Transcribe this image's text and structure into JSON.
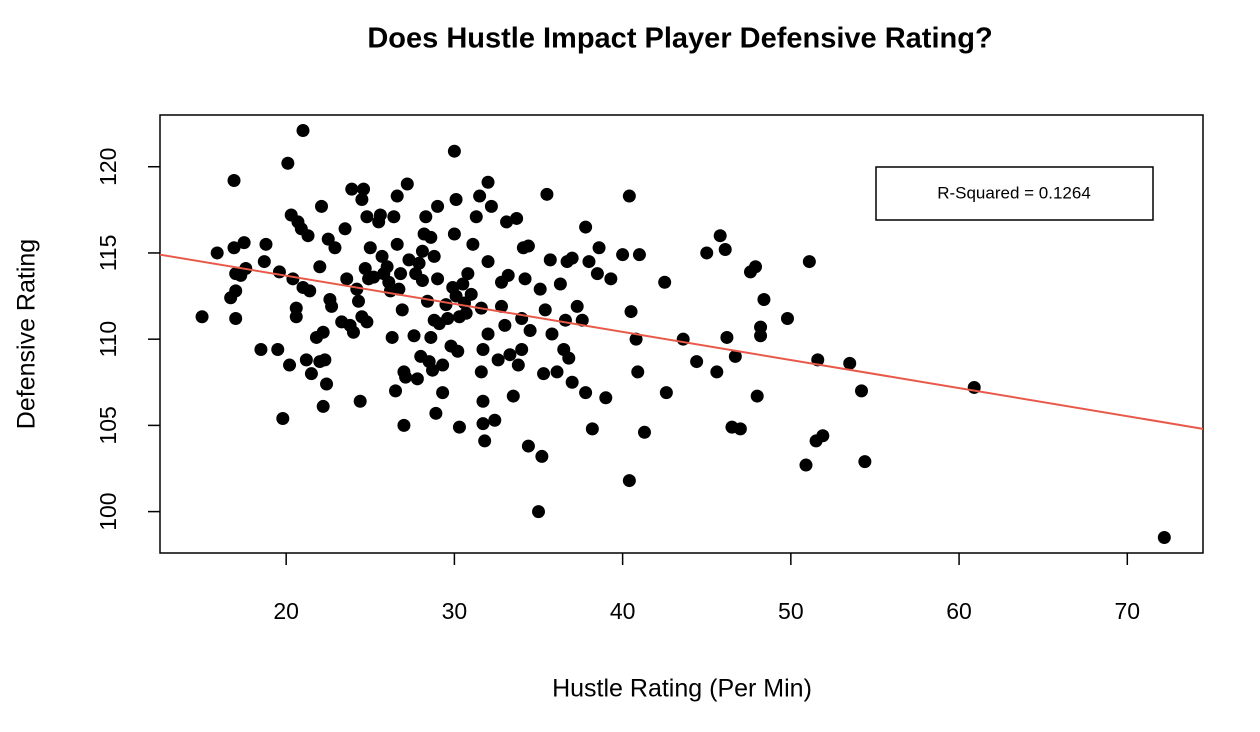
{
  "chart_data": {
    "type": "scatter",
    "title": "Does Hustle Impact Player Defensive Rating?",
    "x_label": "Hustle Rating (Per Min)",
    "y_label": "Defensive Rating",
    "annotation": "R-Squared = 0.1264",
    "color": "#000000",
    "xlim": [
      12.5,
      74.5
    ],
    "ylim": [
      97.6,
      123.0
    ],
    "xticks": [
      20,
      30,
      40,
      50,
      60,
      70
    ],
    "yticks": [
      100,
      105,
      110,
      115,
      120
    ],
    "trend_line": {
      "x": [
        12.5,
        74.5
      ],
      "values": [
        114.9,
        104.8
      ],
      "color": "#e8594a"
    },
    "x": [
      15,
      15.9,
      16.7,
      16.9,
      16.9,
      17,
      17,
      17,
      17.3,
      17.5,
      17.6,
      18.5,
      18.7,
      18.8,
      19.5,
      19.6,
      19.8,
      20.1,
      20.2,
      20.3,
      20.4,
      20.6,
      20.6,
      20.7,
      20.9,
      21,
      21,
      21.2,
      21.3,
      21.4,
      21.5,
      21.8,
      22,
      22,
      22.1,
      22.2,
      22.2,
      22.3,
      22.4,
      22.5,
      22.6,
      22.7,
      22.9,
      23.3,
      23.5,
      23.6,
      23.8,
      23.9,
      24,
      24.2,
      24.3,
      24.4,
      24.5,
      24.5,
      24.6,
      24.7,
      24.8,
      24.8,
      24.9,
      25,
      25.2,
      25.5,
      25.6,
      25.7,
      25.8,
      26,
      26.1,
      26.2,
      26.3,
      26.4,
      26.5,
      26.6,
      26.6,
      26.7,
      26.8,
      26.9,
      27,
      27,
      27.1,
      27.2,
      27.3,
      27.6,
      27.7,
      27.8,
      27.9,
      28,
      28.1,
      28.1,
      28.2,
      28.3,
      28.4,
      28.5,
      28.6,
      28.6,
      28.7,
      28.8,
      28.8,
      28.9,
      29,
      29,
      29.1,
      29.3,
      29.3,
      29.5,
      29.6,
      29.8,
      29.9,
      30,
      30,
      30.1,
      30.1,
      30.2,
      30.3,
      30.3,
      30.5,
      30.6,
      30.7,
      30.8,
      31,
      31.1,
      31.3,
      31.5,
      31.6,
      31.6,
      31.7,
      31.7,
      31.7,
      31.8,
      32,
      32,
      32,
      32.2,
      32.4,
      32.6,
      32.8,
      32.8,
      33,
      33.1,
      33.2,
      33.3,
      33.5,
      33.7,
      33.8,
      34,
      34,
      34.1,
      34.2,
      34.4,
      34.5,
      34.4,
      35,
      35.1,
      35.2,
      35.3,
      35.4,
      35.5,
      35.7,
      35.8,
      36.1,
      36.3,
      36.5,
      36.6,
      36.7,
      36.8,
      37,
      37,
      37.3,
      37.6,
      37.8,
      37.8,
      38,
      38.2,
      38.5,
      38.6,
      39,
      39.3,
      40,
      40.4,
      40.4,
      40.5,
      40.8,
      40.9,
      41,
      41.3,
      42.5,
      42.6,
      43.6,
      44.4,
      45,
      45.6,
      45.8,
      46.1,
      46.2,
      46.5,
      46.7,
      47,
      47.6,
      47.9,
      48,
      48.2,
      48.2,
      48.4,
      49.8,
      50.9,
      51.1,
      51.5,
      51.6,
      51.9,
      53.5,
      54.2,
      54.4,
      60.9,
      72.2
    ],
    "values": [
      111.3,
      115,
      112.4,
      119.2,
      115.3,
      113.8,
      111.2,
      112.8,
      113.7,
      115.6,
      114.1,
      109.4,
      114.5,
      115.5,
      109.4,
      113.9,
      105.4,
      120.2,
      108.5,
      117.2,
      113.5,
      111.3,
      111.8,
      116.8,
      116.4,
      122.1,
      113,
      108.8,
      116,
      112.8,
      108,
      110.1,
      114.2,
      108.7,
      117.7,
      110.4,
      106.1,
      108.8,
      107.4,
      115.8,
      112.3,
      111.9,
      115.3,
      111,
      116.4,
      113.5,
      110.8,
      118.7,
      110.4,
      112.9,
      112.2,
      106.4,
      111.3,
      118.1,
      118.7,
      114.1,
      117.1,
      111,
      113.5,
      115.3,
      113.6,
      116.8,
      117.2,
      114.8,
      113.8,
      114.2,
      113.3,
      112.8,
      110.1,
      117.1,
      107,
      115.5,
      118.3,
      112.9,
      113.8,
      111.7,
      108.1,
      105,
      107.8,
      119,
      114.6,
      110.2,
      113.8,
      107.7,
      114.4,
      109,
      113.4,
      115.1,
      116.1,
      117.1,
      112.2,
      108.7,
      115.9,
      110.1,
      108.2,
      114.8,
      111.1,
      105.7,
      113.5,
      117.7,
      110.9,
      108.5,
      106.9,
      112,
      111.2,
      109.6,
      113,
      120.9,
      116.1,
      112.5,
      118.1,
      109.3,
      111.3,
      104.9,
      113.2,
      112.1,
      111.5,
      113.8,
      112.6,
      115.5,
      117.1,
      118.3,
      108.1,
      111.8,
      109.4,
      106.4,
      105.1,
      104.1,
      119.1,
      114.5,
      110.3,
      117.7,
      105.3,
      108.8,
      113.3,
      111.9,
      110.8,
      116.8,
      113.7,
      109.1,
      106.7,
      117,
      108.5,
      109.4,
      111.2,
      115.3,
      113.5,
      115.4,
      110.5,
      103.8,
      100,
      112.9,
      103.2,
      108,
      111.7,
      118.4,
      114.6,
      110.3,
      108.1,
      113.2,
      109.4,
      111.1,
      114.5,
      108.9,
      114.7,
      107.5,
      111.9,
      111.1,
      116.5,
      106.9,
      114.5,
      104.8,
      113.8,
      115.3,
      106.6,
      113.5,
      114.9,
      118.3,
      101.8,
      111.6,
      110,
      108.1,
      114.9,
      104.6,
      113.3,
      106.9,
      110,
      108.7,
      115,
      108.1,
      116,
      115.2,
      110.1,
      104.9,
      109,
      104.8,
      113.9,
      114.2,
      106.7,
      110.7,
      110.2,
      112.3,
      111.2,
      102.7,
      114.5,
      104.1,
      108.8,
      104.4,
      108.6,
      107,
      102.9,
      107.2,
      98.5
    ]
  }
}
